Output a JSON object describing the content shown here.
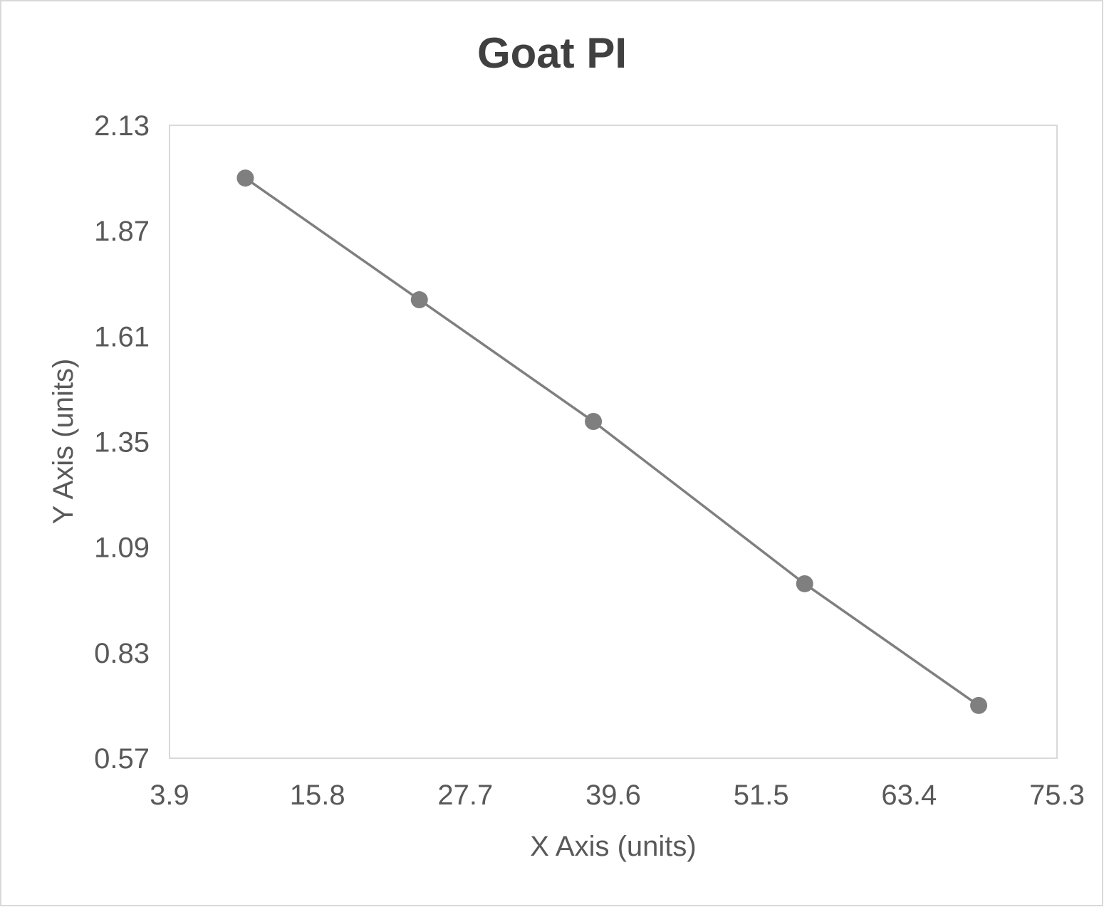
{
  "chart_data": {
    "type": "line",
    "title": "Goat PI",
    "xlabel": "X Axis (units)",
    "ylabel": "Y Axis (units)",
    "xlim": [
      3.9,
      75.3
    ],
    "ylim": [
      0.57,
      2.13
    ],
    "xticks": [
      "3.9",
      "15.8",
      "27.7",
      "39.6",
      "51.5",
      "63.4",
      "75.3"
    ],
    "yticks": [
      "0.57",
      "0.83",
      "1.09",
      "1.35",
      "1.61",
      "1.87",
      "2.13"
    ],
    "grid": false,
    "markers": true,
    "series": [
      {
        "x": [
          10,
          24,
          38,
          55,
          69
        ],
        "y": [
          2.0,
          1.7,
          1.4,
          1.0,
          0.7
        ]
      }
    ],
    "colors": {
      "series": "#7f7f7f",
      "title": "#404040",
      "text": "#595959",
      "plot_border": "#d9d9d9"
    }
  }
}
